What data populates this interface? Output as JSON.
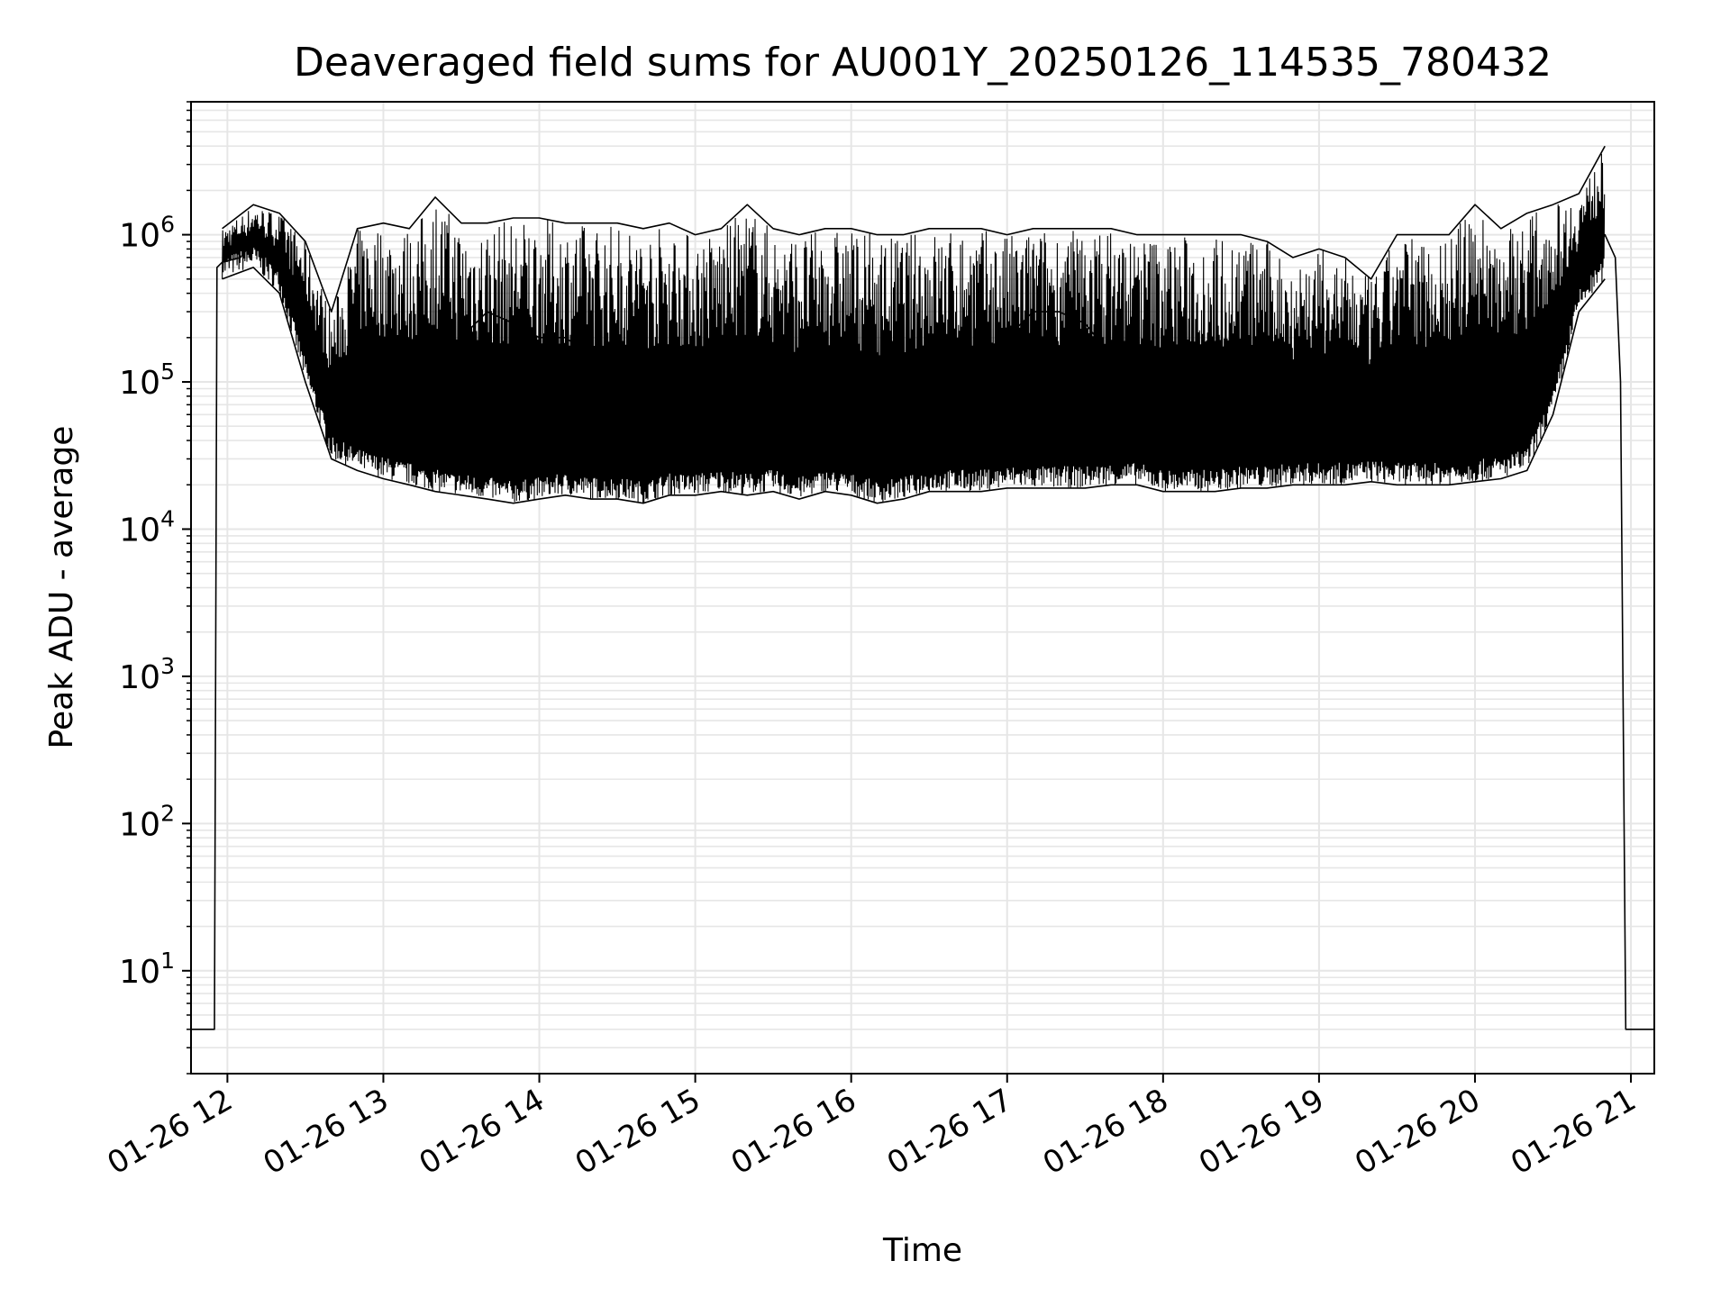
{
  "chart_data": {
    "type": "line",
    "title": "Deaveraged field sums for AU001Y_20250126_114535_780432",
    "xlabel": "Time",
    "ylabel": "Peak ADU - average",
    "y_scale": "log",
    "ylim": [
      2,
      8000000
    ],
    "xlim": [
      "2025-01-26T11:46",
      "2025-01-26T21:09"
    ],
    "grid": true,
    "line_color": "#000000",
    "grid_color": "#e6e6e6",
    "x_ticks": [
      {
        "value": "2025-01-26T12:00",
        "label": "01-26 12"
      },
      {
        "value": "2025-01-26T13:00",
        "label": "01-26 13"
      },
      {
        "value": "2025-01-26T14:00",
        "label": "01-26 14"
      },
      {
        "value": "2025-01-26T15:00",
        "label": "01-26 15"
      },
      {
        "value": "2025-01-26T16:00",
        "label": "01-26 16"
      },
      {
        "value": "2025-01-26T17:00",
        "label": "01-26 17"
      },
      {
        "value": "2025-01-26T18:00",
        "label": "01-26 18"
      },
      {
        "value": "2025-01-26T19:00",
        "label": "01-26 19"
      },
      {
        "value": "2025-01-26T20:00",
        "label": "01-26 20"
      },
      {
        "value": "2025-01-26T21:00",
        "label": "01-26 21"
      }
    ],
    "y_ticks": [
      {
        "value": 10,
        "exp": "1"
      },
      {
        "value": 100,
        "exp": "2"
      },
      {
        "value": 1000,
        "exp": "3"
      },
      {
        "value": 10000,
        "exp": "4"
      },
      {
        "value": 100000,
        "exp": "5"
      },
      {
        "value": 1000000,
        "exp": "6"
      }
    ],
    "y_tick_base": "10",
    "series": [
      {
        "x": [
          "2025-01-26T11:46",
          "2025-01-26T11:55",
          "2025-01-26T11:56",
          "2025-01-26T11:58",
          "2025-01-26T12:05",
          "2025-01-26T12:12",
          "2025-01-26T12:20",
          "2025-01-26T12:30",
          "2025-01-26T12:40",
          "2025-01-26T12:50",
          "2025-01-26T13:00",
          "2025-01-26T13:10",
          "2025-01-26T13:20",
          "2025-01-26T13:30",
          "2025-01-26T13:40",
          "2025-01-26T13:50",
          "2025-01-26T14:00",
          "2025-01-26T14:10",
          "2025-01-26T14:20",
          "2025-01-26T14:30",
          "2025-01-26T14:40",
          "2025-01-26T14:50",
          "2025-01-26T15:00",
          "2025-01-26T15:10",
          "2025-01-26T15:20",
          "2025-01-26T15:30",
          "2025-01-26T15:40",
          "2025-01-26T15:50",
          "2025-01-26T16:00",
          "2025-01-26T16:10",
          "2025-01-26T16:20",
          "2025-01-26T16:30",
          "2025-01-26T16:40",
          "2025-01-26T16:50",
          "2025-01-26T17:00",
          "2025-01-26T17:10",
          "2025-01-26T17:20",
          "2025-01-26T17:30",
          "2025-01-26T17:40",
          "2025-01-26T17:50",
          "2025-01-26T18:00",
          "2025-01-26T18:10",
          "2025-01-26T18:20",
          "2025-01-26T18:30",
          "2025-01-26T18:40",
          "2025-01-26T18:50",
          "2025-01-26T19:00",
          "2025-01-26T19:10",
          "2025-01-26T19:20",
          "2025-01-26T19:30",
          "2025-01-26T19:40",
          "2025-01-26T19:50",
          "2025-01-26T20:00",
          "2025-01-26T20:10",
          "2025-01-26T20:20",
          "2025-01-26T20:30",
          "2025-01-26T20:40",
          "2025-01-26T20:50",
          "2025-01-26T20:54",
          "2025-01-26T20:56",
          "2025-01-26T20:58",
          "2025-01-26T21:09"
        ],
        "y": [
          4,
          4,
          600000,
          650000,
          700000,
          1000000,
          700000,
          300000,
          60000,
          35000,
          35000,
          30000,
          60000,
          200000,
          300000,
          250000,
          200000,
          200000,
          150000,
          100000,
          150000,
          100000,
          120000,
          100000,
          80000,
          60000,
          60000,
          100000,
          150000,
          120000,
          100000,
          120000,
          150000,
          150000,
          200000,
          300000,
          300000,
          250000,
          150000,
          100000,
          80000,
          60000,
          40000,
          40000,
          40000,
          60000,
          35000,
          35000,
          35000,
          35000,
          30000,
          30000,
          35000,
          35000,
          40000,
          200000,
          500000,
          1000000,
          700000,
          100000,
          4,
          4
        ]
      },
      {
        "x": [
          "2025-01-26T11:58",
          "2025-01-26T12:10",
          "2025-01-26T12:20",
          "2025-01-26T12:30",
          "2025-01-26T12:40",
          "2025-01-26T12:50",
          "2025-01-26T13:00",
          "2025-01-26T13:10",
          "2025-01-26T13:20",
          "2025-01-26T13:30",
          "2025-01-26T13:40",
          "2025-01-26T13:50",
          "2025-01-26T14:00",
          "2025-01-26T14:10",
          "2025-01-26T14:20",
          "2025-01-26T14:30",
          "2025-01-26T14:40",
          "2025-01-26T14:50",
          "2025-01-26T15:00",
          "2025-01-26T15:10",
          "2025-01-26T15:20",
          "2025-01-26T15:30",
          "2025-01-26T15:40",
          "2025-01-26T15:50",
          "2025-01-26T16:00",
          "2025-01-26T16:10",
          "2025-01-26T16:20",
          "2025-01-26T16:30",
          "2025-01-26T16:40",
          "2025-01-26T16:50",
          "2025-01-26T17:00",
          "2025-01-26T17:10",
          "2025-01-26T17:20",
          "2025-01-26T17:30",
          "2025-01-26T17:40",
          "2025-01-26T17:50",
          "2025-01-26T18:00",
          "2025-01-26T18:10",
          "2025-01-26T18:20",
          "2025-01-26T18:30",
          "2025-01-26T18:40",
          "2025-01-26T18:50",
          "2025-01-26T19:00",
          "2025-01-26T19:10",
          "2025-01-26T19:20",
          "2025-01-26T19:30",
          "2025-01-26T19:40",
          "2025-01-26T19:50",
          "2025-01-26T20:00",
          "2025-01-26T20:10",
          "2025-01-26T20:20",
          "2025-01-26T20:30",
          "2025-01-26T20:40",
          "2025-01-26T20:50"
        ],
        "y": [
          1100000,
          1600000,
          1400000,
          900000,
          300000,
          1100000,
          1200000,
          1100000,
          1800000,
          1200000,
          1200000,
          1300000,
          1300000,
          1200000,
          1200000,
          1200000,
          1100000,
          1200000,
          1000000,
          1100000,
          1600000,
          1100000,
          1000000,
          1100000,
          1100000,
          1000000,
          1000000,
          1100000,
          1100000,
          1100000,
          1000000,
          1100000,
          1100000,
          1100000,
          1100000,
          1000000,
          1000000,
          1000000,
          1000000,
          1000000,
          900000,
          700000,
          800000,
          700000,
          500000,
          1000000,
          1000000,
          1000000,
          1600000,
          1100000,
          1400000,
          1600000,
          1900000,
          4000000
        ]
      },
      {
        "x": [
          "2025-01-26T11:58",
          "2025-01-26T12:10",
          "2025-01-26T12:20",
          "2025-01-26T12:30",
          "2025-01-26T12:40",
          "2025-01-26T12:50",
          "2025-01-26T13:00",
          "2025-01-26T13:10",
          "2025-01-26T13:20",
          "2025-01-26T13:30",
          "2025-01-26T13:40",
          "2025-01-26T13:50",
          "2025-01-26T14:00",
          "2025-01-26T14:10",
          "2025-01-26T14:20",
          "2025-01-26T14:30",
          "2025-01-26T14:40",
          "2025-01-26T14:50",
          "2025-01-26T15:00",
          "2025-01-26T15:10",
          "2025-01-26T15:20",
          "2025-01-26T15:30",
          "2025-01-26T15:40",
          "2025-01-26T15:50",
          "2025-01-26T16:00",
          "2025-01-26T16:10",
          "2025-01-26T16:20",
          "2025-01-26T16:30",
          "2025-01-26T16:40",
          "2025-01-26T16:50",
          "2025-01-26T17:00",
          "2025-01-26T17:10",
          "2025-01-26T17:20",
          "2025-01-26T17:30",
          "2025-01-26T17:40",
          "2025-01-26T17:50",
          "2025-01-26T18:00",
          "2025-01-26T18:10",
          "2025-01-26T18:20",
          "2025-01-26T18:30",
          "2025-01-26T18:40",
          "2025-01-26T18:50",
          "2025-01-26T19:00",
          "2025-01-26T19:10",
          "2025-01-26T19:20",
          "2025-01-26T19:30",
          "2025-01-26T19:40",
          "2025-01-26T19:50",
          "2025-01-26T20:00",
          "2025-01-26T20:10",
          "2025-01-26T20:20",
          "2025-01-26T20:30",
          "2025-01-26T20:40",
          "2025-01-26T20:50"
        ],
        "y": [
          500000,
          600000,
          400000,
          100000,
          30000,
          25000,
          22000,
          20000,
          18000,
          17000,
          16000,
          15000,
          16000,
          17000,
          16000,
          16000,
          15000,
          17000,
          17000,
          18000,
          17000,
          18000,
          16000,
          18000,
          17000,
          15000,
          16000,
          18000,
          18000,
          18000,
          19000,
          19000,
          19000,
          19000,
          20000,
          20000,
          18000,
          18000,
          18000,
          19000,
          19000,
          20000,
          20000,
          20000,
          21000,
          20000,
          20000,
          20000,
          21000,
          22000,
          25000,
          60000,
          300000,
          500000
        ]
      }
    ]
  }
}
